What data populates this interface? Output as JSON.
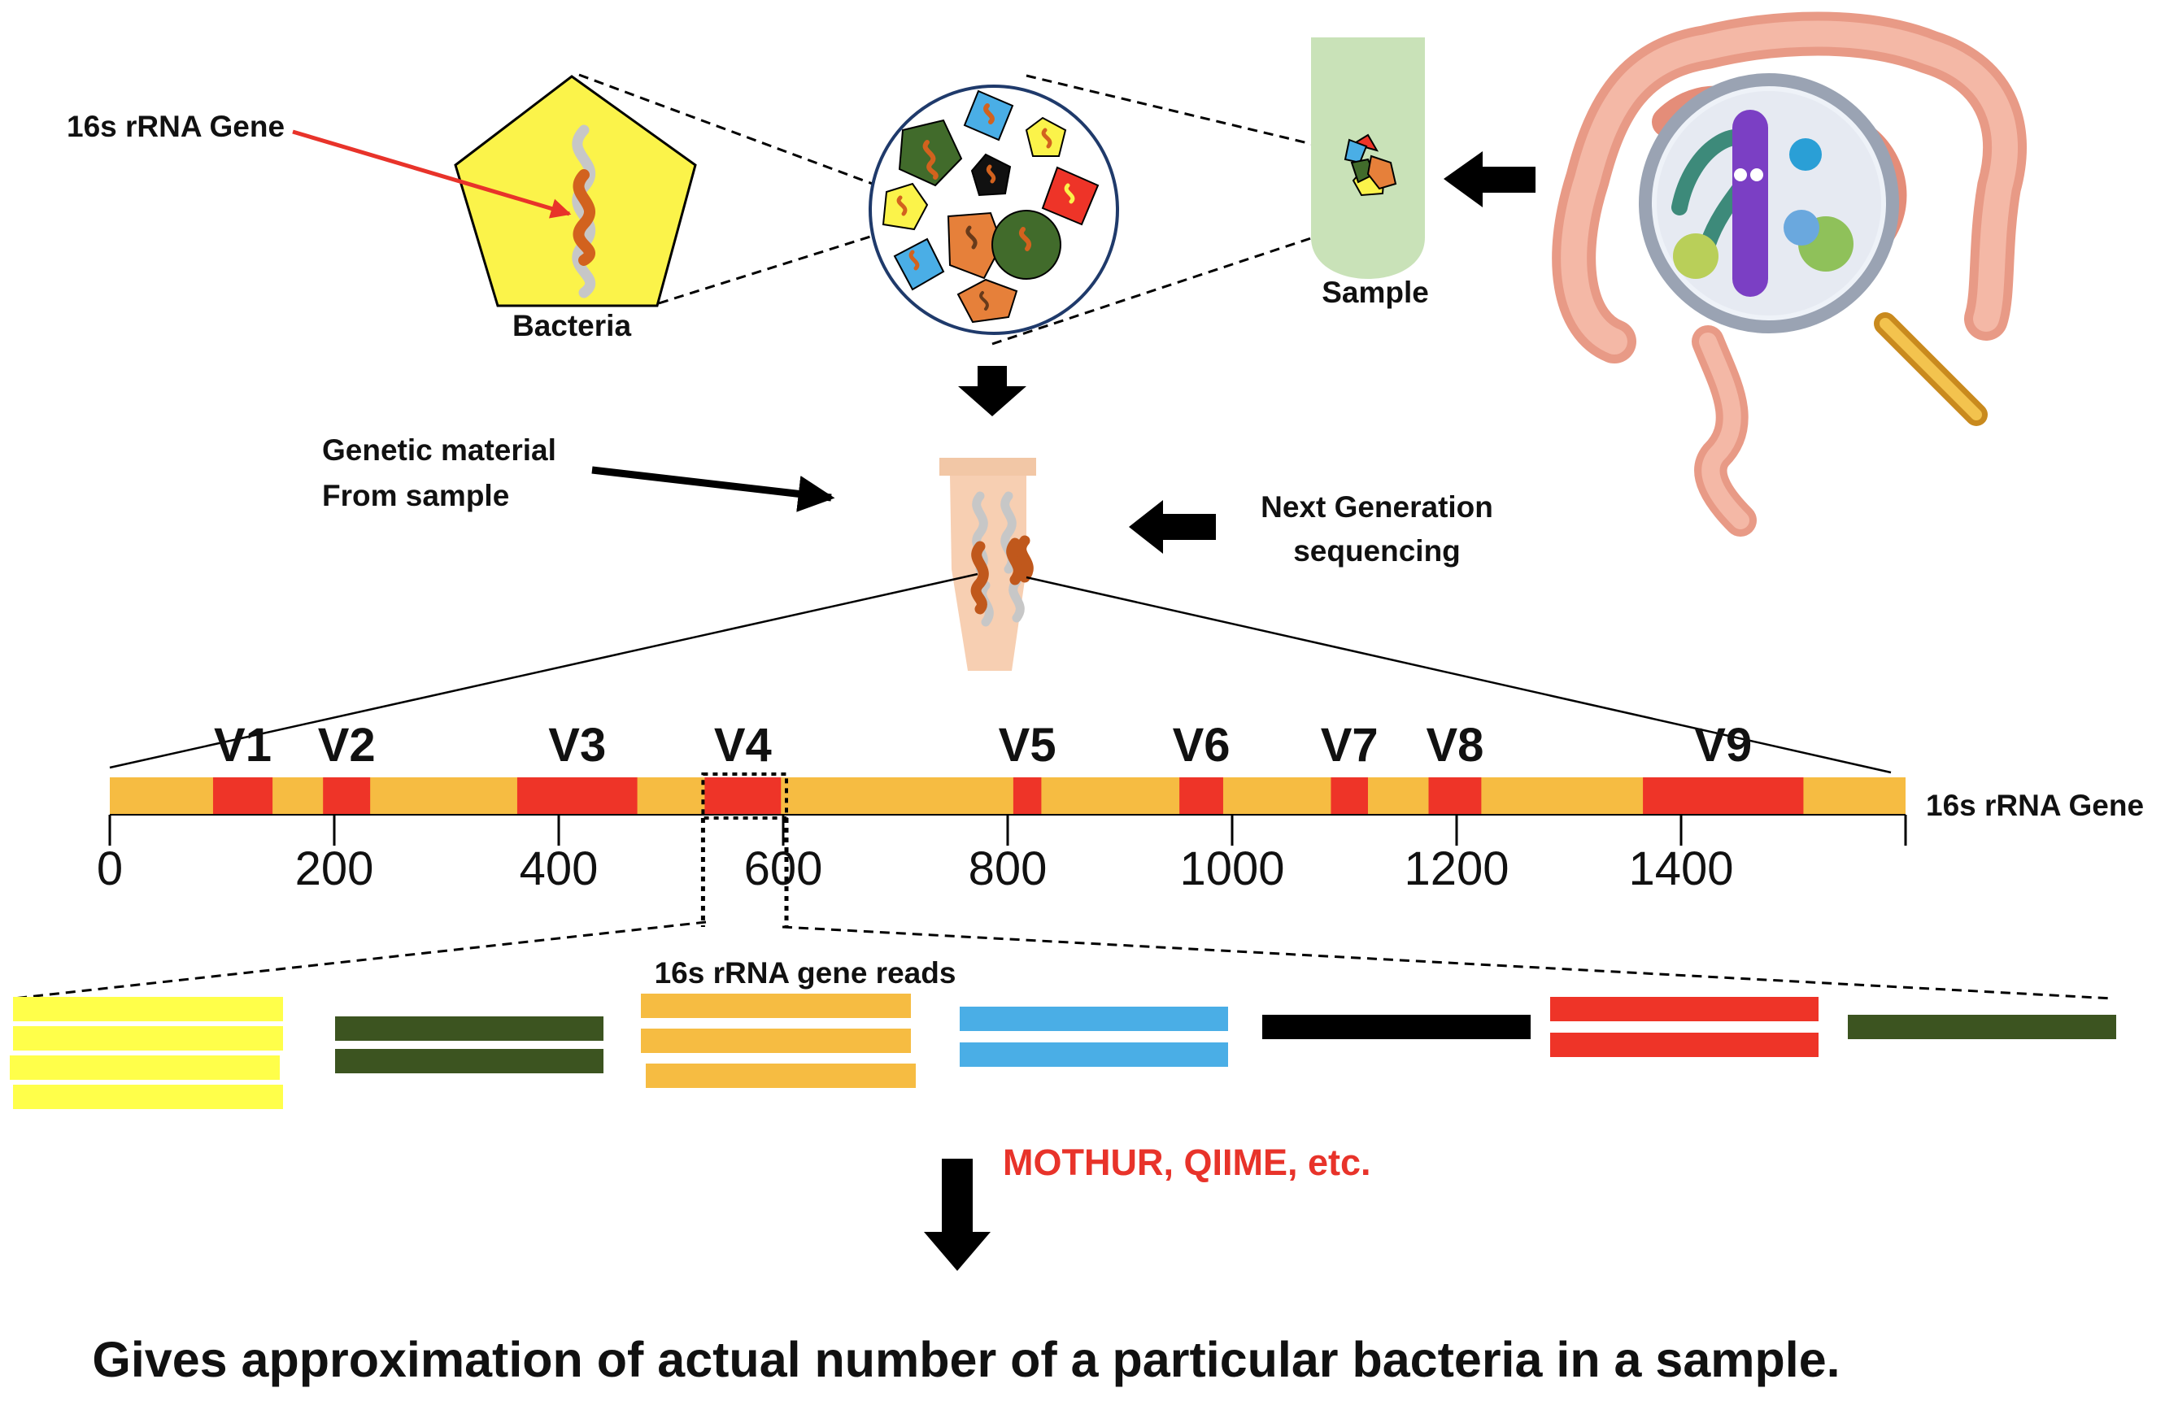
{
  "labels": {
    "gene_callout": "16s rRNA Gene",
    "bacteria": "Bacteria",
    "sample": "Sample",
    "genetic_material_line1": "Genetic material",
    "genetic_material_line2": "From sample",
    "ngs_line1": "Next Generation",
    "ngs_line2": "sequencing",
    "gene_bar": "16s rRNA Gene",
    "reads": "16s rRNA gene reads",
    "tools": "MOTHUR, QIIME, etc.",
    "conclusion": "Gives approximation of actual number of a particular bacteria in a sample."
  },
  "gene": {
    "length_bp": 1600,
    "ticks": [
      "0",
      "200",
      "400",
      "600",
      "800",
      "1000",
      "1200",
      "1400"
    ],
    "tick_values": [
      0,
      200,
      400,
      600,
      800,
      1000,
      1200,
      1400
    ],
    "regions": [
      {
        "label": "V1",
        "start": 92,
        "end": 145
      },
      {
        "label": "V2",
        "start": 190,
        "end": 232
      },
      {
        "label": "V3",
        "start": 363,
        "end": 470
      },
      {
        "label": "V4",
        "start": 530,
        "end": 598
      },
      {
        "label": "V5",
        "start": 805,
        "end": 830
      },
      {
        "label": "V6",
        "start": 953,
        "end": 992
      },
      {
        "label": "V7",
        "start": 1088,
        "end": 1121
      },
      {
        "label": "V8",
        "start": 1175,
        "end": 1222
      },
      {
        "label": "V9",
        "start": 1366,
        "end": 1509
      }
    ],
    "selected_region": {
      "label": "V4",
      "start": 530,
      "end": 600
    }
  },
  "read_groups": [
    {
      "color": "#ffff4a",
      "count": 4
    },
    {
      "color": "#3c5420",
      "count": 2
    },
    {
      "color": "#f6bc42",
      "count": 3
    },
    {
      "color": "#4aaee6",
      "count": 2
    },
    {
      "color": "#000000",
      "count": 1
    },
    {
      "color": "#ee3428",
      "count": 2
    },
    {
      "color": "#3c5420",
      "count": 1
    }
  ],
  "colors": {
    "gene_base": "#f6bc42",
    "region": "#ee3428",
    "tools_text": "#e8332a",
    "bacteria_fill": "#fbf34a",
    "tube_fill": "#c9e2b8",
    "ngs_tube_fill": "#f7cfb2"
  },
  "icons": {
    "intestine": "intestine-icon",
    "magnifier": "magnifier-icon",
    "bacteria_mix": "bacteria-mix-icon",
    "sample_tube": "sample-tube-icon",
    "ngs_tube": "ngs-tube-icon"
  }
}
